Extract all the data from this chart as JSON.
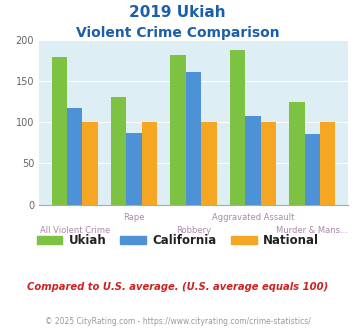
{
  "title_line1": "2019 Ukiah",
  "title_line2": "Violent Crime Comparison",
  "categories": [
    "All Violent Crime",
    "Rape",
    "Robbery",
    "Aggravated Assault",
    "Murder & Mans..."
  ],
  "ukiah": [
    179,
    130,
    181,
    187,
    124
  ],
  "california": [
    117,
    87,
    161,
    107,
    86
  ],
  "national": [
    100,
    100,
    100,
    100,
    100
  ],
  "color_ukiah": "#7dc242",
  "color_california": "#4d91d6",
  "color_national": "#f5a623",
  "color_title1": "#1a5faa",
  "color_title2": "#1a5faa",
  "color_xlabel_odd": "#aa88aa",
  "color_xlabel_even": "#aa88aa",
  "color_footer": "#999999",
  "color_compare": "#cc2222",
  "bg_chart": "#ddeef4",
  "bg_figure": "#ffffff",
  "ylabel_max": 200,
  "yticks": [
    0,
    50,
    100,
    150,
    200
  ],
  "footer_text": "© 2025 CityRating.com - https://www.cityrating.com/crime-statistics/",
  "compare_text": "Compared to U.S. average. (U.S. average equals 100)"
}
